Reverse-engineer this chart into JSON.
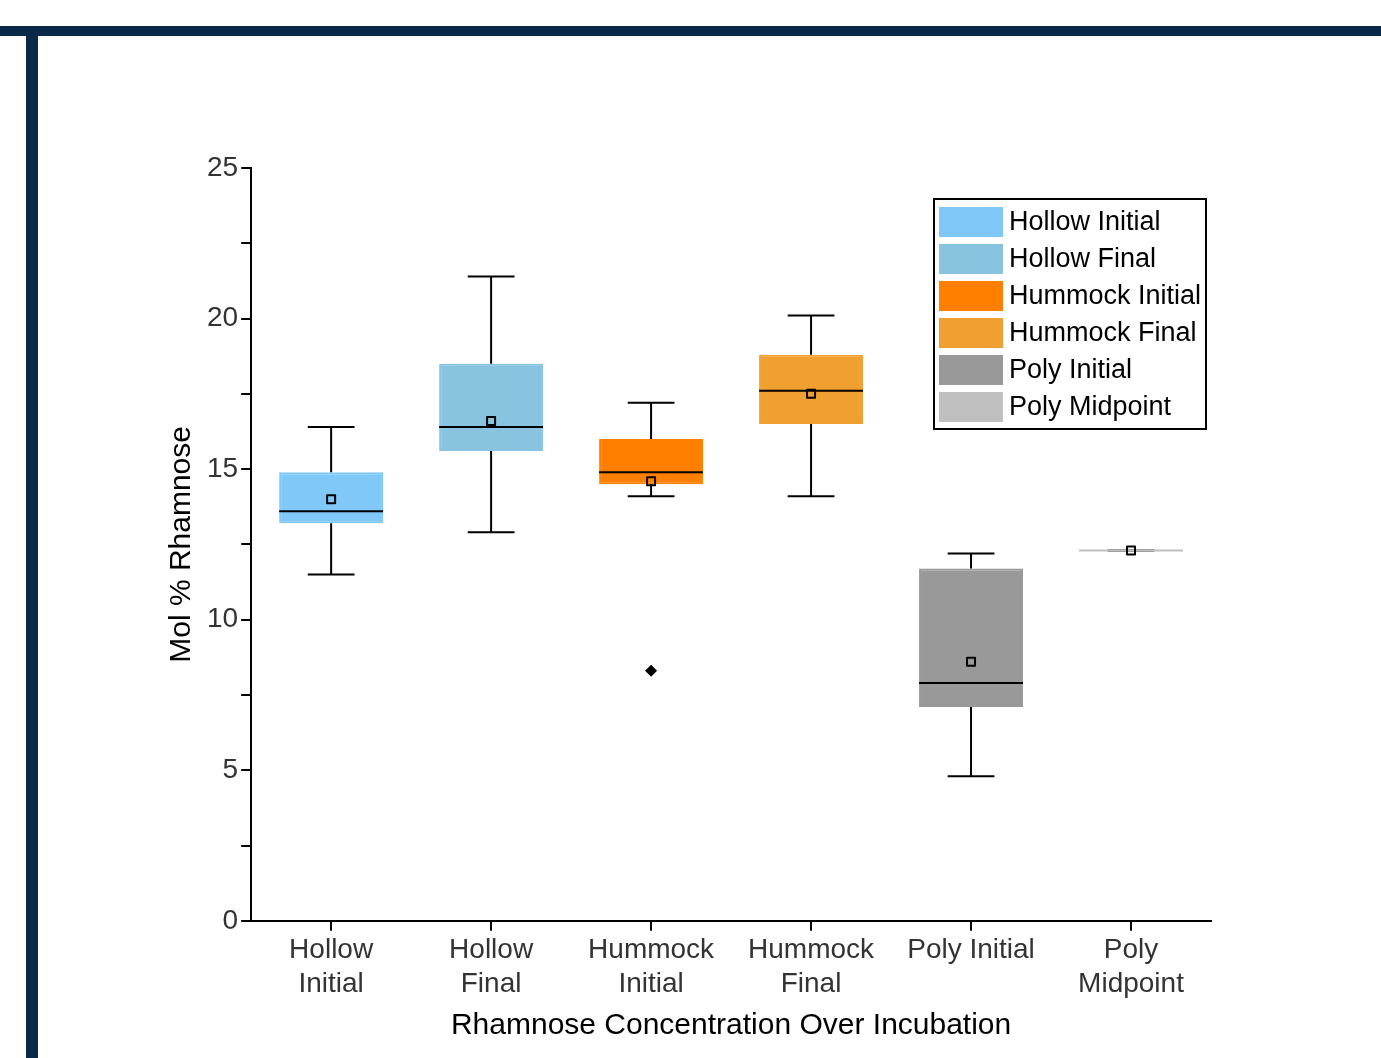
{
  "chart_data": {
    "type": "box",
    "ylabel": "Mol % Rhamnose",
    "xlabel": "Rhamnose Concentration Over Incubation",
    "categories": [
      "Hollow Initial",
      "Hollow Final",
      "Hummock Initial",
      "Hummock Final",
      "Poly Initial",
      "Poly Midpoint"
    ],
    "ylim": [
      0,
      25
    ],
    "yticks": [
      0,
      {
        "value": 2.5,
        "label": null
      },
      5,
      {
        "value": 7.5,
        "label": null
      },
      10,
      {
        "value": 12.5,
        "label": null
      },
      15,
      {
        "value": 17.5,
        "label": null
      },
      20,
      {
        "value": 22.5,
        "label": null
      },
      25
    ],
    "grid": false,
    "legend": "top right",
    "marker": "square",
    "series": [
      {
        "name": "Hollow Initial",
        "color": "#80c8f8",
        "boxes": [
          {
            "low": 11.5,
            "q1": 13.2,
            "median": 13.6,
            "q3": 14.9,
            "high": 16.4,
            "mean": 14.0
          },
          null,
          null,
          null,
          null,
          null
        ]
      },
      {
        "name": "Hollow Final",
        "color": "#88c4e0",
        "boxes": [
          null,
          {
            "low": 12.9,
            "q1": 15.6,
            "median": 16.4,
            "q3": 18.5,
            "high": 21.4,
            "mean": 16.6
          },
          null,
          null,
          null,
          null
        ]
      },
      {
        "name": "Hummock Initial",
        "color": "#ff7f00",
        "boxes": [
          null,
          null,
          {
            "low": 14.1,
            "q1": 14.5,
            "median": 14.9,
            "q3": 16.0,
            "high": 17.2,
            "mean": 14.6,
            "outliers": [
              8.3
            ]
          },
          null,
          null,
          null
        ]
      },
      {
        "name": "Hummock Final",
        "color": "#f0a030",
        "boxes": [
          null,
          null,
          null,
          {
            "low": 14.1,
            "q1": 16.5,
            "median": 17.6,
            "q3": 18.8,
            "high": 20.1,
            "mean": 17.5
          },
          null,
          null
        ]
      },
      {
        "name": "Poly Initial",
        "color": "#999999",
        "boxes": [
          null,
          null,
          null,
          null,
          {
            "low": 4.8,
            "q1": 7.1,
            "median": 7.9,
            "q3": 11.7,
            "high": 12.2,
            "mean": 8.6
          },
          null
        ]
      },
      {
        "name": "Poly Midpoint",
        "color": "#c0c0c0",
        "boxes": [
          null,
          null,
          null,
          null,
          null,
          {
            "low": 12.3,
            "q1": 12.3,
            "median": 12.3,
            "q3": 12.3,
            "high": 12.3,
            "mean": 12.3
          }
        ]
      }
    ]
  }
}
